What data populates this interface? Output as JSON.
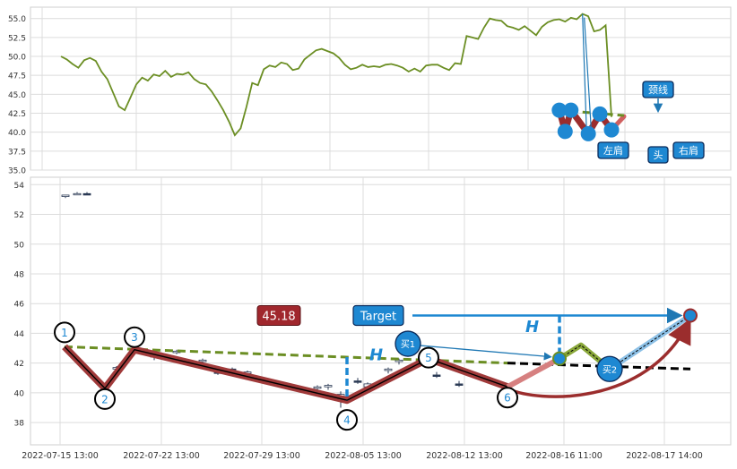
{
  "chart_data": [
    {
      "type": "line",
      "panel": "top",
      "ylim": [
        35.0,
        56.5
      ],
      "yticks": [
        "35.0",
        "37.5",
        "40.0",
        "42.5",
        "45.0",
        "47.5",
        "50.0",
        "52.5",
        "55.0"
      ],
      "grid": true,
      "series_color": "#6b8e23",
      "series": [
        {
          "values": [
            50.0,
            49.6,
            49.0,
            48.5,
            49.5,
            49.8,
            49.4,
            48.0,
            47.0,
            45.2,
            43.4,
            42.9,
            44.6,
            46.3,
            47.2,
            46.8,
            47.6,
            47.4,
            48.1,
            47.3,
            47.7,
            47.6,
            47.9,
            47.0,
            46.5,
            46.3,
            45.4,
            44.2,
            42.9,
            41.4,
            39.6,
            40.5,
            43.3,
            46.5,
            46.2,
            48.3,
            48.8,
            48.6,
            49.2,
            49.0,
            48.2,
            48.4,
            49.6,
            50.2,
            50.8,
            51.0,
            50.7,
            50.4,
            49.8,
            48.9,
            48.3,
            48.5,
            48.9,
            48.6,
            48.7,
            48.6,
            48.9,
            49.0,
            48.8,
            48.5,
            48.0,
            48.4,
            48.0,
            48.8,
            48.9,
            48.9,
            48.5,
            48.2,
            49.1,
            49.0,
            52.7,
            52.5,
            52.3,
            53.8,
            55.0,
            54.8,
            54.7,
            54.0,
            53.8,
            53.5,
            54.0,
            53.4,
            52.8,
            53.9,
            54.5,
            54.8,
            54.9,
            54.6,
            55.1,
            54.9,
            55.6,
            55.3,
            53.3,
            53.5,
            54.1,
            42.0
          ]
        }
      ],
      "annotations": {
        "left_shoulder": "左肩",
        "head": "头",
        "right_shoulder": "右肩",
        "neckline": "颈线"
      },
      "pattern_points": [
        {
          "label": "左肩",
          "x": 86,
          "y": 42.9
        },
        {
          "label": "",
          "x": 87,
          "y": 40.1
        },
        {
          "label": "",
          "x": 88,
          "y": 42.9
        },
        {
          "label": "头",
          "x": 91,
          "y": 39.8
        },
        {
          "label": "",
          "x": 93,
          "y": 42.4
        },
        {
          "label": "右肩",
          "x": 95,
          "y": 40.3
        }
      ],
      "neckline": {
        "x1": 86,
        "y1": 42.9,
        "x2": 95,
        "y2": 42.2
      }
    },
    {
      "type": "candlestick",
      "panel": "bottom",
      "ylim": [
        36.5,
        54.5
      ],
      "yticks": [
        "38",
        "40",
        "42",
        "44",
        "46",
        "48",
        "50",
        "52",
        "54"
      ],
      "xticks": [
        "2022-07-15 13:00",
        "2022-07-22 13:00",
        "2022-07-29 13:00",
        "2022-08-05 13:00",
        "2022-08-12 13:00",
        "2022-08-16 11:00",
        "2022-08-17 14:00"
      ],
      "grid": true,
      "candles": [
        [
          53.2,
          53.3,
          53.1,
          53.3
        ],
        [
          53.4,
          53.5,
          53.3,
          53.4
        ],
        [
          53.4,
          53.5,
          53.3,
          53.3
        ],
        [
          41.6,
          41.8,
          41.4,
          41.7
        ],
        [
          42.4,
          42.6,
          42.2,
          42.5
        ],
        [
          42.7,
          42.9,
          42.6,
          42.8
        ],
        [
          42.1,
          42.3,
          41.9,
          42.2
        ],
        [
          41.4,
          41.6,
          41.2,
          41.3
        ],
        [
          41.6,
          41.7,
          41.3,
          41.5
        ],
        [
          41.3,
          41.5,
          41.1,
          41.4
        ],
        [
          40.3,
          40.5,
          40.1,
          40.4
        ],
        [
          40.4,
          40.6,
          40.2,
          40.5
        ],
        [
          39.5,
          40.1,
          39.0,
          39.9
        ],
        [
          40.8,
          41.0,
          40.6,
          40.7
        ],
        [
          40.4,
          40.7,
          40.2,
          40.6
        ],
        [
          41.5,
          41.7,
          41.3,
          41.6
        ],
        [
          42.1,
          42.3,
          41.9,
          42.2
        ],
        [
          41.2,
          41.4,
          41.0,
          41.1
        ],
        [
          40.6,
          40.8,
          40.4,
          40.5
        ]
      ],
      "points": [
        {
          "label": "1",
          "x": 0,
          "y": 43.1
        },
        {
          "label": "2",
          "x": 2,
          "y": 40.3
        },
        {
          "label": "3",
          "x": 5,
          "y": 42.9
        },
        {
          "label": "4",
          "x": 15,
          "y": 39.5
        },
        {
          "label": "5",
          "x": 18,
          "y": 42.3
        },
        {
          "label": "6",
          "x": 21,
          "y": 40.4
        }
      ],
      "neckline": {
        "x1": 0,
        "y1": 43.1,
        "x2": 26,
        "y2": 41.3
      },
      "buy_points": [
        {
          "label": "买1",
          "x": 17,
          "y": 43.3
        },
        {
          "label": "买2",
          "x": 24,
          "y": 41.6
        }
      ],
      "breakout_point": {
        "x": 23,
        "y": 42.3
      },
      "target_point": {
        "x": 27,
        "y": 45.2
      },
      "target_label": "Target",
      "target_value": "45.18",
      "height_label": "H"
    }
  ]
}
